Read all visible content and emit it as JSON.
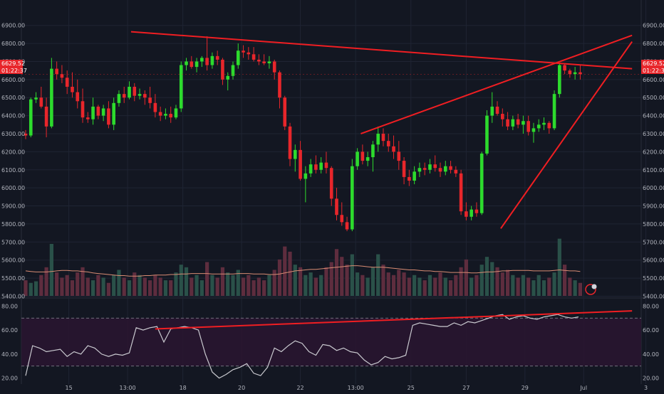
{
  "chart_data": {
    "type": "candlestick",
    "title": "",
    "price_axis": {
      "ticks": [
        "6900.00",
        "6800.00",
        "6700.00",
        "6600.00",
        "6500.00",
        "6400.00",
        "6300.00",
        "6200.00",
        "6100.00",
        "6000.00",
        "5900.00",
        "5800.00",
        "5700.00",
        "5600.00",
        "5500.00",
        "5400.00"
      ],
      "range": [
        5390,
        6950
      ],
      "last_price": "6629.52",
      "countdown": "01:22:37"
    },
    "time_axis": {
      "labels": [
        {
          "t": 12.5,
          "label": "15"
        },
        {
          "t": 29.5,
          "label": "13:00"
        },
        {
          "t": 45.5,
          "label": "18"
        },
        {
          "t": 62.5,
          "label": "20"
        },
        {
          "t": 79.5,
          "label": "22"
        },
        {
          "t": 95.5,
          "label": "13:00"
        },
        {
          "t": 111.5,
          "label": "25"
        },
        {
          "t": 127.5,
          "label": "27"
        },
        {
          "t": 144.5,
          "label": "29"
        },
        {
          "t": 161.5,
          "label": "Jul"
        },
        {
          "t": 179.5,
          "label": "3"
        }
      ]
    },
    "candles_ohlc": [
      [
        6300,
        6320,
        6270,
        6290
      ],
      [
        6290,
        6500,
        6280,
        6490
      ],
      [
        6490,
        6530,
        6470,
        6500
      ],
      [
        6500,
        6560,
        6440,
        6450
      ],
      [
        6450,
        6500,
        6280,
        6340
      ],
      [
        6340,
        6720,
        6330,
        6660
      ],
      [
        6660,
        6700,
        6600,
        6630
      ],
      [
        6630,
        6680,
        6580,
        6610
      ],
      [
        6610,
        6650,
        6520,
        6560
      ],
      [
        6560,
        6640,
        6500,
        6530
      ],
      [
        6530,
        6600,
        6440,
        6480
      ],
      [
        6480,
        6550,
        6360,
        6390
      ],
      [
        6390,
        6420,
        6360,
        6380
      ],
      [
        6380,
        6500,
        6350,
        6450
      ],
      [
        6450,
        6460,
        6380,
        6400
      ],
      [
        6400,
        6460,
        6370,
        6440
      ],
      [
        6440,
        6480,
        6330,
        6350
      ],
      [
        6350,
        6500,
        6320,
        6470
      ],
      [
        6470,
        6540,
        6450,
        6520
      ],
      [
        6520,
        6560,
        6470,
        6500
      ],
      [
        6500,
        6590,
        6490,
        6560
      ],
      [
        6560,
        6580,
        6480,
        6510
      ],
      [
        6510,
        6550,
        6490,
        6520
      ],
      [
        6520,
        6540,
        6460,
        6500
      ],
      [
        6500,
        6560,
        6440,
        6470
      ],
      [
        6470,
        6520,
        6390,
        6420
      ],
      [
        6420,
        6450,
        6370,
        6400
      ],
      [
        6400,
        6440,
        6380,
        6410
      ],
      [
        6410,
        6450,
        6360,
        6390
      ],
      [
        6390,
        6460,
        6380,
        6440
      ],
      [
        6440,
        6700,
        6420,
        6680
      ],
      [
        6680,
        6720,
        6650,
        6700
      ],
      [
        6700,
        6730,
        6660,
        6670
      ],
      [
        6670,
        6720,
        6640,
        6700
      ],
      [
        6700,
        6730,
        6670,
        6720
      ],
      [
        6720,
        6840,
        6650,
        6680
      ],
      [
        6680,
        6750,
        6660,
        6730
      ],
      [
        6730,
        6760,
        6680,
        6710
      ],
      [
        6710,
        6720,
        6570,
        6600
      ],
      [
        6600,
        6640,
        6540,
        6620
      ],
      [
        6620,
        6700,
        6600,
        6680
      ],
      [
        6680,
        6800,
        6660,
        6760
      ],
      [
        6760,
        6790,
        6720,
        6750
      ],
      [
        6750,
        6780,
        6710,
        6740
      ],
      [
        6740,
        6780,
        6700,
        6710
      ],
      [
        6710,
        6740,
        6680,
        6700
      ],
      [
        6700,
        6740,
        6680,
        6690
      ],
      [
        6690,
        6730,
        6660,
        6700
      ],
      [
        6700,
        6710,
        6600,
        6640
      ],
      [
        6640,
        6650,
        6440,
        6500
      ],
      [
        6500,
        6510,
        6320,
        6340
      ],
      [
        6340,
        6360,
        6120,
        6160
      ],
      [
        6160,
        6240,
        6090,
        6210
      ],
      [
        6210,
        6260,
        6040,
        6050
      ],
      [
        6050,
        6120,
        5920,
        6080
      ],
      [
        6080,
        6160,
        6060,
        6130
      ],
      [
        6130,
        6180,
        6080,
        6100
      ],
      [
        6100,
        6170,
        6080,
        6140
      ],
      [
        6140,
        6200,
        6080,
        6110
      ],
      [
        6110,
        6120,
        5900,
        5940
      ],
      [
        5940,
        6000,
        5820,
        5850
      ],
      [
        5850,
        5920,
        5790,
        5810
      ],
      [
        5810,
        5840,
        5760,
        5770
      ],
      [
        5770,
        6160,
        5760,
        6120
      ],
      [
        6120,
        6220,
        6100,
        6200
      ],
      [
        6200,
        6240,
        6130,
        6150
      ],
      [
        6150,
        6200,
        6120,
        6170
      ],
      [
        6170,
        6260,
        6090,
        6240
      ],
      [
        6240,
        6340,
        6200,
        6300
      ],
      [
        6300,
        6330,
        6230,
        6260
      ],
      [
        6260,
        6300,
        6200,
        6230
      ],
      [
        6230,
        6290,
        6160,
        6200
      ],
      [
        6200,
        6260,
        6100,
        6150
      ],
      [
        6150,
        6170,
        6020,
        6060
      ],
      [
        6060,
        6100,
        6010,
        6040
      ],
      [
        6040,
        6120,
        6020,
        6090
      ],
      [
        6090,
        6140,
        6060,
        6110
      ],
      [
        6110,
        6140,
        6070,
        6100
      ],
      [
        6100,
        6160,
        6080,
        6130
      ],
      [
        6130,
        6180,
        6090,
        6110
      ],
      [
        6110,
        6140,
        6060,
        6090
      ],
      [
        6090,
        6150,
        6070,
        6120
      ],
      [
        6120,
        6150,
        6080,
        6100
      ],
      [
        6100,
        6120,
        6060,
        6080
      ],
      [
        6080,
        6100,
        5850,
        5870
      ],
      [
        5870,
        5920,
        5820,
        5840
      ],
      [
        5840,
        5900,
        5820,
        5880
      ],
      [
        5880,
        5920,
        5840,
        5860
      ],
      [
        5860,
        6200,
        5850,
        6190
      ],
      [
        6190,
        6430,
        6180,
        6400
      ],
      [
        6400,
        6530,
        6360,
        6450
      ],
      [
        6450,
        6480,
        6400,
        6410
      ],
      [
        6410,
        6440,
        6340,
        6380
      ],
      [
        6380,
        6420,
        6320,
        6340
      ],
      [
        6340,
        6400,
        6320,
        6380
      ],
      [
        6380,
        6410,
        6330,
        6350
      ],
      [
        6350,
        6400,
        6300,
        6370
      ],
      [
        6370,
        6400,
        6290,
        6310
      ],
      [
        6310,
        6360,
        6250,
        6330
      ],
      [
        6330,
        6380,
        6310,
        6350
      ],
      [
        6350,
        6390,
        6320,
        6360
      ],
      [
        6360,
        6370,
        6300,
        6330
      ],
      [
        6330,
        6540,
        6320,
        6520
      ],
      [
        6520,
        6690,
        6500,
        6680
      ],
      [
        6680,
        6690,
        6630,
        6650
      ],
      [
        6650,
        6660,
        6610,
        6630
      ],
      [
        6630,
        6670,
        6600,
        6640
      ],
      [
        6640,
        6680,
        6600,
        6630
      ]
    ],
    "candle_t": [
      0,
      1.5,
      3,
      4.5,
      6,
      7.5,
      9,
      10.5,
      12,
      13.5,
      15,
      16.5,
      18,
      19.5,
      21,
      22.5,
      24,
      25.5,
      27,
      28.5,
      30,
      31.5,
      33,
      34.5,
      36,
      37.5,
      39,
      40.5,
      42,
      43.5,
      45,
      46.5,
      48,
      49.5,
      51,
      52.5,
      54,
      55.5,
      57,
      58.5,
      60,
      61.5,
      63,
      64.5,
      66,
      67.5,
      69,
      70.5,
      72,
      73.5,
      75,
      76.5,
      78,
      79.5,
      81,
      82.5,
      84,
      85.5,
      87,
      88.5,
      90,
      91.5,
      93,
      94.5,
      96,
      97.5,
      99,
      100.5,
      102,
      103.5,
      105,
      106.5,
      108,
      109.5,
      111,
      112.5,
      114,
      115.5,
      117,
      118.5,
      120,
      121.5,
      123,
      124.5,
      126,
      127.5,
      129,
      130.5,
      132,
      133.5,
      135,
      136.5,
      138,
      139.5,
      141,
      142.5,
      144,
      145.5,
      147,
      148.5,
      150,
      151.5,
      153,
      154.5,
      156,
      157.5,
      159,
      160.5
    ],
    "volume": {
      "bars": [
        30,
        25,
        28,
        40,
        55,
        100,
        45,
        35,
        40,
        30,
        45,
        55,
        35,
        30,
        40,
        35,
        25,
        40,
        50,
        35,
        30,
        45,
        40,
        35,
        30,
        40,
        35,
        30,
        30,
        45,
        60,
        55,
        35,
        40,
        30,
        65,
        40,
        35,
        55,
        45,
        40,
        50,
        35,
        40,
        30,
        35,
        30,
        40,
        50,
        70,
        95,
        85,
        60,
        55,
        40,
        45,
        35,
        40,
        55,
        65,
        90,
        75,
        60,
        80,
        45,
        40,
        35,
        55,
        80,
        60,
        45,
        40,
        50,
        45,
        35,
        40,
        35,
        30,
        40,
        35,
        45,
        35,
        30,
        40,
        55,
        70,
        35,
        40,
        60,
        75,
        65,
        55,
        45,
        50,
        40,
        35,
        40,
        35,
        30,
        40,
        30,
        35,
        45,
        110,
        60,
        35,
        30,
        25
      ],
      "ma": [
        48,
        47,
        46,
        46,
        46,
        47,
        48,
        49,
        49,
        48,
        48,
        47,
        46,
        44,
        43,
        42,
        41,
        40,
        39,
        39,
        38,
        38,
        38,
        39,
        39,
        40,
        40,
        40,
        41,
        41,
        42,
        42,
        43,
        43,
        43,
        43,
        42,
        42,
        42,
        42,
        42,
        43,
        43,
        43,
        42,
        42,
        42,
        41,
        41,
        42,
        44,
        46,
        48,
        49,
        50,
        51,
        51,
        52,
        53,
        54,
        55,
        56,
        57,
        58,
        58,
        57,
        56,
        55,
        55,
        55,
        54,
        53,
        52,
        51,
        50,
        50,
        49,
        48,
        48,
        47,
        47,
        46,
        45,
        45,
        45,
        45,
        44,
        44,
        45,
        46,
        46,
        47,
        48,
        48,
        49,
        49,
        49,
        49,
        48,
        48,
        48,
        48,
        49,
        50,
        49,
        48,
        48,
        47
      ],
      "max": 130
    },
    "trendlines": [
      {
        "t1": 30.5,
        "p1": 6865,
        "t2": 175.5,
        "p2": 6660
      },
      {
        "t1": 97,
        "p1": 6300,
        "t2": 175.5,
        "p2": 6845
      },
      {
        "t1": 137.5,
        "p1": 5775,
        "t2": 175.5,
        "p2": 6810
      }
    ],
    "rsi": {
      "ticks": [
        "80.00",
        "60.00",
        "40.00",
        "20.00"
      ],
      "range": [
        15,
        85
      ],
      "upper": 70,
      "lower": 30,
      "t": [
        0,
        2,
        4,
        6,
        8,
        10,
        12,
        14,
        16,
        18,
        20,
        22,
        24,
        26,
        28,
        30,
        32,
        34,
        36,
        38,
        40,
        42,
        44,
        46,
        48,
        50,
        52,
        54,
        56,
        58,
        60,
        62,
        64,
        66,
        68,
        70,
        72,
        74,
        76,
        78,
        80,
        82,
        84,
        86,
        88,
        90,
        92,
        94,
        96,
        98,
        100,
        102,
        104,
        106,
        108,
        110,
        112,
        114,
        116,
        118,
        120,
        122,
        124,
        126,
        128,
        130,
        132,
        134,
        136,
        138,
        140,
        142,
        144,
        146,
        148,
        150,
        152,
        154,
        156,
        158,
        160
      ],
      "values": [
        22,
        47,
        45,
        42,
        43,
        44,
        38,
        42,
        40,
        47,
        45,
        40,
        38,
        40,
        39,
        41,
        62,
        60,
        62,
        63,
        50,
        61,
        62,
        63,
        62,
        60,
        40,
        25,
        20,
        23,
        27,
        29,
        32,
        24,
        22,
        29,
        45,
        42,
        47,
        51,
        49,
        42,
        39,
        48,
        47,
        43,
        45,
        42,
        41,
        35,
        31,
        33,
        38,
        36,
        37,
        39,
        64,
        66,
        65,
        64,
        63,
        63,
        66,
        64,
        67,
        66,
        68,
        70,
        72,
        73,
        69,
        71,
        72,
        70,
        69,
        71,
        72,
        73,
        71,
        70,
        71
      ],
      "trendline": {
        "t1": 37.5,
        "v1": 61,
        "t2": 175.5,
        "v2": 76
      }
    },
    "grid": true,
    "legend": "none"
  }
}
